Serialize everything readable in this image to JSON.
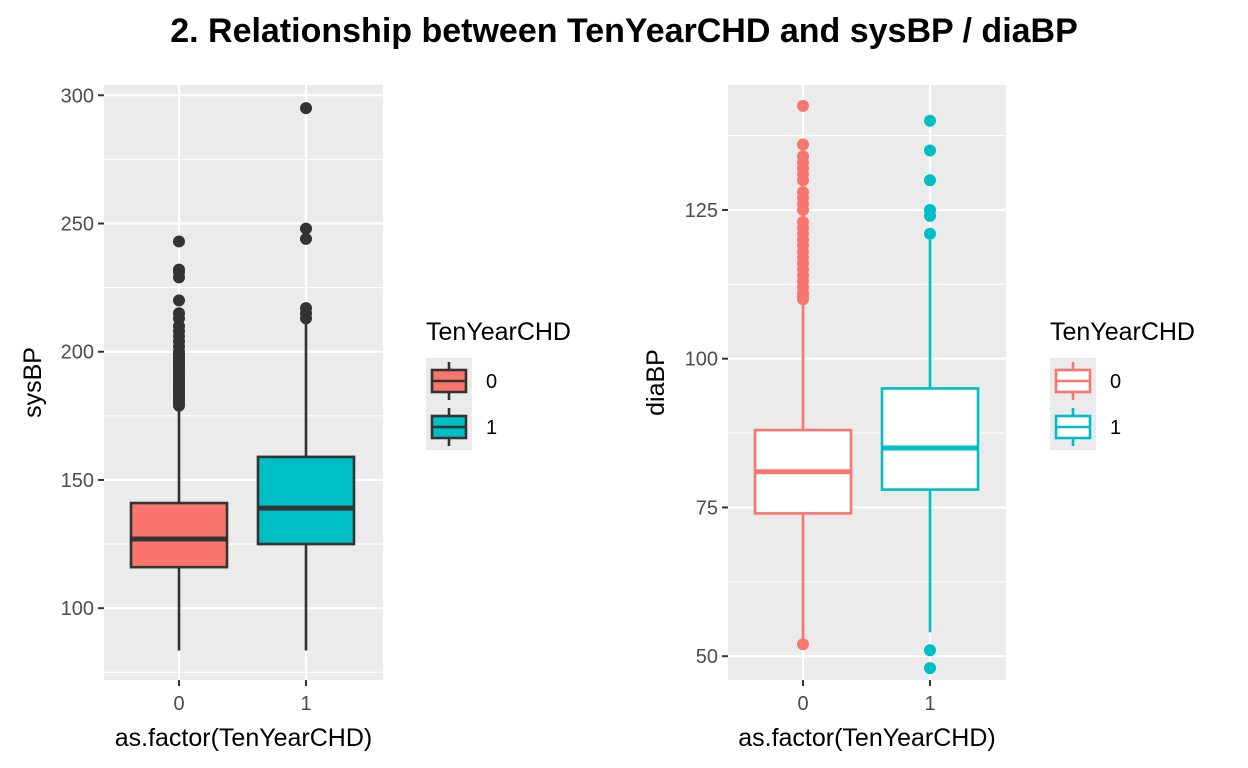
{
  "title": "2. Relationship between TenYearCHD and sysBP / diaBP",
  "colors": {
    "group0": "#F8766D",
    "group1": "#00BFC4",
    "panel": "#EBEBEB",
    "grid": "#FFFFFF",
    "box_line_filled": "#333333"
  },
  "chart_data": [
    {
      "type": "box",
      "style": "filled",
      "xlabel": "as.factor(TenYearCHD)",
      "ylabel": "sysBP",
      "categories": [
        "0",
        "1"
      ],
      "ylim": [
        72,
        304
      ],
      "yticks": [
        100,
        150,
        200,
        250,
        300
      ],
      "grid": true,
      "legend": {
        "title": "TenYearCHD",
        "entries": [
          "0",
          "1"
        ],
        "position": "right"
      },
      "boxes": [
        {
          "category": "0",
          "whisker_low": 83.5,
          "q1": 116,
          "median": 127,
          "q3": 141,
          "whisker_high": 178,
          "outliers": [
            179,
            180,
            181,
            182,
            183,
            184,
            185,
            186,
            187,
            188,
            189,
            190,
            191,
            192,
            193,
            194,
            195,
            196,
            197,
            198,
            199,
            200,
            202,
            204,
            206,
            208,
            210,
            213,
            215,
            220,
            229,
            231,
            232,
            243
          ]
        },
        {
          "category": "1",
          "whisker_low": 83.5,
          "q1": 125,
          "median": 139,
          "q3": 159,
          "whisker_high": 211,
          "outliers": [
            213,
            215,
            217,
            244,
            248,
            295
          ]
        }
      ]
    },
    {
      "type": "box",
      "style": "outline",
      "xlabel": "as.factor(TenYearCHD)",
      "ylabel": "diaBP",
      "categories": [
        "0",
        "1"
      ],
      "ylim": [
        46,
        146
      ],
      "yticks": [
        50,
        75,
        100,
        125
      ],
      "grid": true,
      "legend": {
        "title": "TenYearCHD",
        "entries": [
          "0",
          "1"
        ],
        "position": "right"
      },
      "boxes": [
        {
          "category": "0",
          "whisker_low": 52,
          "q1": 74,
          "median": 81,
          "q3": 88,
          "whisker_high": 109,
          "outliers": [
            52,
            110,
            110.5,
            111,
            112,
            113,
            114,
            115,
            116,
            117,
            118,
            119,
            120,
            121,
            122,
            123,
            125,
            126,
            127,
            128,
            130,
            131,
            132,
            133,
            134,
            136,
            142.5
          ]
        },
        {
          "category": "1",
          "whisker_low": 54,
          "q1": 78,
          "median": 85,
          "q3": 95,
          "whisker_high": 120,
          "outliers": [
            48,
            51,
            121,
            124,
            125,
            130,
            135,
            140
          ]
        }
      ]
    }
  ]
}
